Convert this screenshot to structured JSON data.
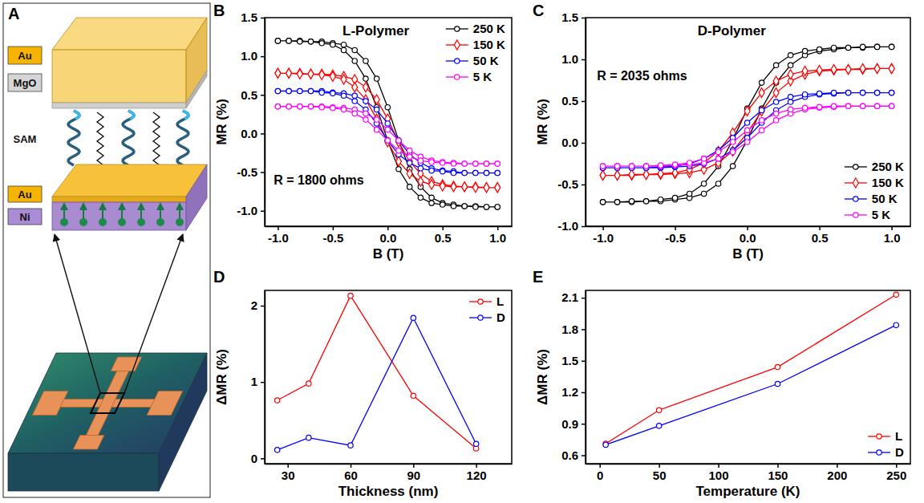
{
  "diagram": {
    "panel": "A",
    "layers": [
      "Au",
      "MgO",
      "SAM",
      "Au",
      "Ni"
    ]
  },
  "chart_data": [
    {
      "type": "line",
      "panel": "B",
      "title": "L-Polymer",
      "annotation": "R = 1800 ohms",
      "x_label": "B (T)",
      "y_label": "MR (%)",
      "x": [
        -1.0,
        -0.9,
        -0.8,
        -0.7,
        -0.6,
        -0.5,
        -0.4,
        -0.3,
        -0.2,
        -0.1,
        0.0,
        0.1,
        0.2,
        0.3,
        0.4,
        0.5,
        0.6,
        0.7,
        0.8,
        0.9,
        1.0,
        1.0,
        0.9,
        0.8,
        0.7,
        0.6,
        0.5,
        0.4,
        0.3,
        0.2,
        0.1,
        0.0,
        -0.1,
        -0.2,
        -0.3,
        -0.4,
        -0.5,
        -0.6,
        -0.7,
        -0.8,
        -0.9,
        -1.0
      ],
      "xlim": [
        -1.12,
        1.13
      ],
      "xticks": [
        {
          "value": -1,
          "label": "-1.0"
        },
        -0.5,
        {
          "value": 0,
          "label": "0.0"
        },
        0.5,
        {
          "value": 1,
          "label": "1.0"
        }
      ],
      "ylim": [
        -1.2,
        1.5
      ],
      "yticks": [
        {
          "value": -1,
          "label": "-1.0"
        },
        -0.5,
        {
          "value": 0,
          "label": "0.0"
        },
        0.5,
        {
          "value": 1,
          "label": "1.0"
        },
        1.5
      ],
      "legend": "upper right",
      "series": [
        {
          "name": "250 K",
          "color": "#000000",
          "marker": "circle",
          "values": [
            1.2,
            1.2,
            1.2,
            1.19,
            1.19,
            1.17,
            1.15,
            1.08,
            0.94,
            0.71,
            0.34,
            -0.09,
            -0.46,
            -0.69,
            -0.83,
            -0.9,
            -0.92,
            -0.94,
            -0.94,
            -0.95,
            -0.95,
            -0.95,
            -0.95,
            -0.95,
            -0.94,
            -0.94,
            -0.92,
            -0.9,
            -0.83,
            -0.69,
            -0.46,
            -0.09,
            0.34,
            0.71,
            0.94,
            1.08,
            1.15,
            1.17,
            1.19,
            1.19,
            1.2,
            1.2
          ]
        },
        {
          "name": "150 K",
          "color": "#ff0000",
          "marker": "diamond",
          "values": [
            0.78,
            0.78,
            0.78,
            0.77,
            0.77,
            0.76,
            0.74,
            0.7,
            0.6,
            0.44,
            0.19,
            -0.11,
            -0.36,
            -0.52,
            -0.62,
            -0.66,
            -0.68,
            -0.69,
            -0.69,
            -0.7,
            -0.7,
            -0.7,
            -0.7,
            -0.7,
            -0.69,
            -0.69,
            -0.68,
            -0.66,
            -0.62,
            -0.52,
            -0.36,
            -0.11,
            0.19,
            0.44,
            0.6,
            0.7,
            0.74,
            0.76,
            0.77,
            0.77,
            0.78,
            0.78
          ]
        },
        {
          "name": "50 K",
          "color": "#0000ff",
          "marker": "circle",
          "values": [
            0.55,
            0.55,
            0.55,
            0.55,
            0.55,
            0.53,
            0.52,
            0.49,
            0.42,
            0.31,
            0.13,
            -0.09,
            -0.27,
            -0.38,
            -0.45,
            -0.48,
            -0.49,
            -0.51,
            -0.51,
            -0.51,
            -0.51,
            -0.51,
            -0.51,
            -0.51,
            -0.51,
            -0.51,
            -0.49,
            -0.48,
            -0.45,
            -0.38,
            -0.27,
            -0.09,
            0.13,
            0.31,
            0.42,
            0.49,
            0.52,
            0.53,
            0.55,
            0.55,
            0.55,
            0.55
          ]
        },
        {
          "name": "5 K",
          "color": "#ff00ff",
          "marker": "circle",
          "values": [
            0.35,
            0.35,
            0.35,
            0.35,
            0.35,
            0.34,
            0.33,
            0.31,
            0.26,
            0.18,
            0.05,
            -0.09,
            -0.22,
            -0.3,
            -0.35,
            -0.37,
            -0.38,
            -0.39,
            -0.39,
            -0.39,
            -0.39,
            -0.39,
            -0.39,
            -0.39,
            -0.39,
            -0.39,
            -0.38,
            -0.37,
            -0.35,
            -0.3,
            -0.22,
            -0.09,
            0.05,
            0.18,
            0.26,
            0.31,
            0.33,
            0.34,
            0.35,
            0.35,
            0.35,
            0.35
          ]
        }
      ]
    },
    {
      "type": "line",
      "panel": "C",
      "title": "D-Polymer",
      "annotation": "R = 2035 ohms",
      "x_label": "B (T)",
      "y_label": "MR (%)",
      "x": [
        -1.0,
        -0.9,
        -0.8,
        -0.7,
        -0.6,
        -0.5,
        -0.4,
        -0.3,
        -0.2,
        -0.1,
        0.0,
        0.1,
        0.2,
        0.3,
        0.4,
        0.5,
        0.6,
        0.7,
        0.8,
        0.9,
        1.0,
        1.0,
        0.9,
        0.8,
        0.7,
        0.6,
        0.5,
        0.4,
        0.3,
        0.2,
        0.1,
        0.0,
        -0.1,
        -0.2,
        -0.3,
        -0.4,
        -0.5,
        -0.6,
        -0.7,
        -0.8,
        -0.9,
        -1.0
      ],
      "xlim": [
        -1.12,
        1.13
      ],
      "xticks": [
        {
          "value": -1,
          "label": "-1.0"
        },
        -0.5,
        {
          "value": 0,
          "label": "0.0"
        },
        0.5,
        {
          "value": 1,
          "label": "1.0"
        }
      ],
      "ylim": [
        -1.0,
        1.5
      ],
      "yticks": [
        {
          "value": -1,
          "label": "-1.0"
        },
        -0.5,
        {
          "value": 0,
          "label": "0.0"
        },
        0.5,
        {
          "value": 1,
          "label": "1.0"
        },
        1.5
      ],
      "legend": "lower right",
      "series": [
        {
          "name": "250 K",
          "color": "#000000",
          "marker": "circle",
          "values": [
            -0.71,
            -0.71,
            -0.71,
            -0.7,
            -0.7,
            -0.68,
            -0.66,
            -0.61,
            -0.49,
            -0.28,
            0.03,
            0.41,
            0.72,
            0.93,
            1.05,
            1.1,
            1.12,
            1.14,
            1.14,
            1.15,
            1.15,
            1.15,
            1.15,
            1.15,
            1.14,
            1.14,
            1.12,
            1.1,
            1.05,
            0.93,
            0.72,
            0.41,
            0.03,
            -0.28,
            -0.49,
            -0.61,
            -0.66,
            -0.68,
            -0.7,
            -0.7,
            -0.71,
            -0.71
          ]
        },
        {
          "name": "150 K",
          "color": "#ff0000",
          "marker": "diamond",
          "values": [
            -0.39,
            -0.39,
            -0.39,
            -0.38,
            -0.38,
            -0.37,
            -0.36,
            -0.32,
            -0.24,
            -0.1,
            0.12,
            0.38,
            0.6,
            0.74,
            0.82,
            0.86,
            0.87,
            0.88,
            0.88,
            0.89,
            0.89,
            0.89,
            0.89,
            0.89,
            0.88,
            0.88,
            0.87,
            0.86,
            0.82,
            0.74,
            0.6,
            0.38,
            0.12,
            -0.1,
            -0.24,
            -0.32,
            -0.36,
            -0.37,
            -0.38,
            -0.38,
            -0.39,
            -0.39
          ]
        },
        {
          "name": "50 K",
          "color": "#0000ff",
          "marker": "circle",
          "values": [
            -0.3,
            -0.3,
            -0.3,
            -0.3,
            -0.3,
            -0.29,
            -0.28,
            -0.25,
            -0.19,
            -0.09,
            0.06,
            0.24,
            0.39,
            0.49,
            0.55,
            0.58,
            0.59,
            0.6,
            0.6,
            0.6,
            0.6,
            0.6,
            0.6,
            0.6,
            0.6,
            0.6,
            0.59,
            0.58,
            0.55,
            0.49,
            0.39,
            0.24,
            0.06,
            -0.09,
            -0.19,
            -0.25,
            -0.28,
            -0.29,
            -0.3,
            -0.3,
            -0.3,
            -0.3
          ]
        },
        {
          "name": "5 K",
          "color": "#ff00ff",
          "marker": "circle",
          "values": [
            -0.28,
            -0.28,
            -0.28,
            -0.28,
            -0.28,
            -0.27,
            -0.26,
            -0.24,
            -0.19,
            -0.11,
            0.01,
            0.15,
            0.27,
            0.35,
            0.4,
            0.42,
            0.43,
            0.44,
            0.44,
            0.44,
            0.44,
            0.44,
            0.44,
            0.44,
            0.44,
            0.44,
            0.43,
            0.42,
            0.4,
            0.35,
            0.27,
            0.15,
            0.01,
            -0.11,
            -0.19,
            -0.24,
            -0.26,
            -0.27,
            -0.28,
            -0.28,
            -0.28,
            -0.28
          ]
        }
      ]
    },
    {
      "type": "line",
      "panel": "D",
      "x_label": "Thickness (nm)",
      "y_label": "ΔMR (%)",
      "x": [
        25,
        40,
        60,
        90,
        120
      ],
      "xlim": [
        19,
        137
      ],
      "xticks": [
        30,
        60,
        90,
        120
      ],
      "ylim": [
        -0.07,
        2.2
      ],
      "yticks": [
        0,
        1,
        2
      ],
      "legend": "upper right",
      "series": [
        {
          "name": "L",
          "color": "#ff0000",
          "marker": "circle",
          "values": [
            0.76,
            0.98,
            2.13,
            0.82,
            0.13
          ]
        },
        {
          "name": "D",
          "color": "#0000ff",
          "marker": "circle",
          "values": [
            0.11,
            0.27,
            0.17,
            1.84,
            0.19
          ]
        }
      ]
    },
    {
      "type": "line",
      "panel": "E",
      "x_label": "Temperature (K)",
      "y_label": "ΔMR (%)",
      "x": [
        5,
        50,
        150,
        250
      ],
      "xlim": [
        -12,
        262
      ],
      "xticks": [
        0,
        50,
        100,
        150,
        200,
        250
      ],
      "ylim": [
        0.52,
        2.17
      ],
      "yticks": [
        0.6,
        0.9,
        1.2,
        1.5,
        1.8,
        2.1
      ],
      "legend": "lower right",
      "series": [
        {
          "name": "L",
          "color": "#ff0000",
          "marker": "circle",
          "values": [
            0.71,
            1.03,
            1.44,
            2.13
          ]
        },
        {
          "name": "D",
          "color": "#0000ff",
          "marker": "circle",
          "values": [
            0.7,
            0.88,
            1.28,
            1.84
          ]
        }
      ]
    }
  ]
}
